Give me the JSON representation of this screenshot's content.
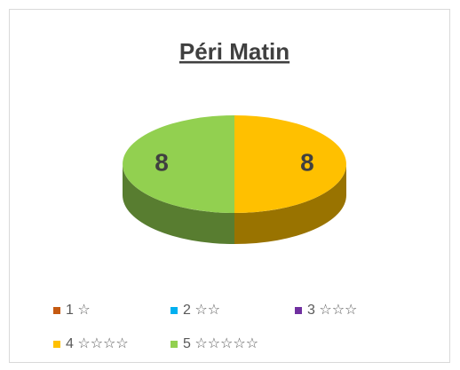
{
  "chart_data": {
    "type": "pie",
    "title": "Péri Matin",
    "categories": [
      "1 ☆",
      "2 ☆☆",
      "3 ☆☆☆",
      "4 ☆☆☆☆",
      "5 ☆☆☆☆☆"
    ],
    "values": [
      0,
      0,
      0,
      8,
      8
    ],
    "colors": [
      "#c55a11",
      "#00b0f0",
      "#7030a0",
      "#ffc000",
      "#92d050"
    ],
    "legend": "bottom"
  }
}
